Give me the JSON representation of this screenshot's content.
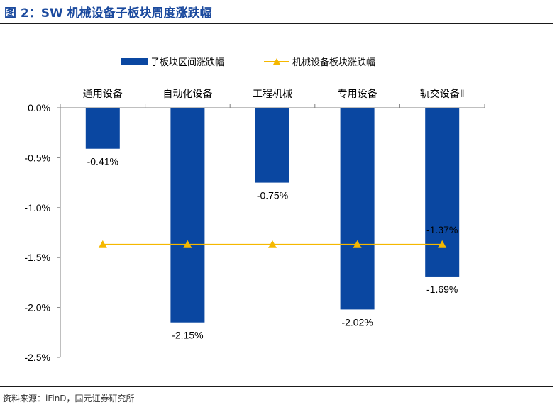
{
  "title": "图 2：SW 机械设备子板块周度涨跌幅",
  "source": "资料来源：iFinD，国元证券研究所",
  "colors": {
    "bar": "#0a47a1",
    "line": "#f5b800",
    "title": "#1b4a9e"
  },
  "chart_data": {
    "type": "bar",
    "categories": [
      "通用设备",
      "自动化设备",
      "工程机械",
      "专用设备",
      "轨交设备Ⅱ"
    ],
    "series": [
      {
        "name": "子板块区间涨跌幅",
        "type": "bar",
        "values": [
          -0.41,
          -2.15,
          -0.75,
          -2.02,
          -1.69
        ],
        "labels": [
          "-0.41%",
          "-2.15%",
          "-0.75%",
          "-2.02%",
          "-1.69%"
        ]
      },
      {
        "name": "机械设备板块涨跌幅",
        "type": "line",
        "values": [
          -1.37,
          -1.37,
          -1.37,
          -1.37,
          -1.37
        ],
        "labels": [
          "-1.37%"
        ]
      }
    ],
    "ylim": [
      -2.5,
      0
    ],
    "yticks": [
      "0.0%",
      "-0.5%",
      "-1.0%",
      "-1.5%",
      "-2.0%",
      "-2.5%"
    ],
    "ytick_values": [
      0,
      -0.5,
      -1.0,
      -1.5,
      -2.0,
      -2.5
    ],
    "xaxis_position": "top",
    "legend_position": "top",
    "grid": false
  }
}
